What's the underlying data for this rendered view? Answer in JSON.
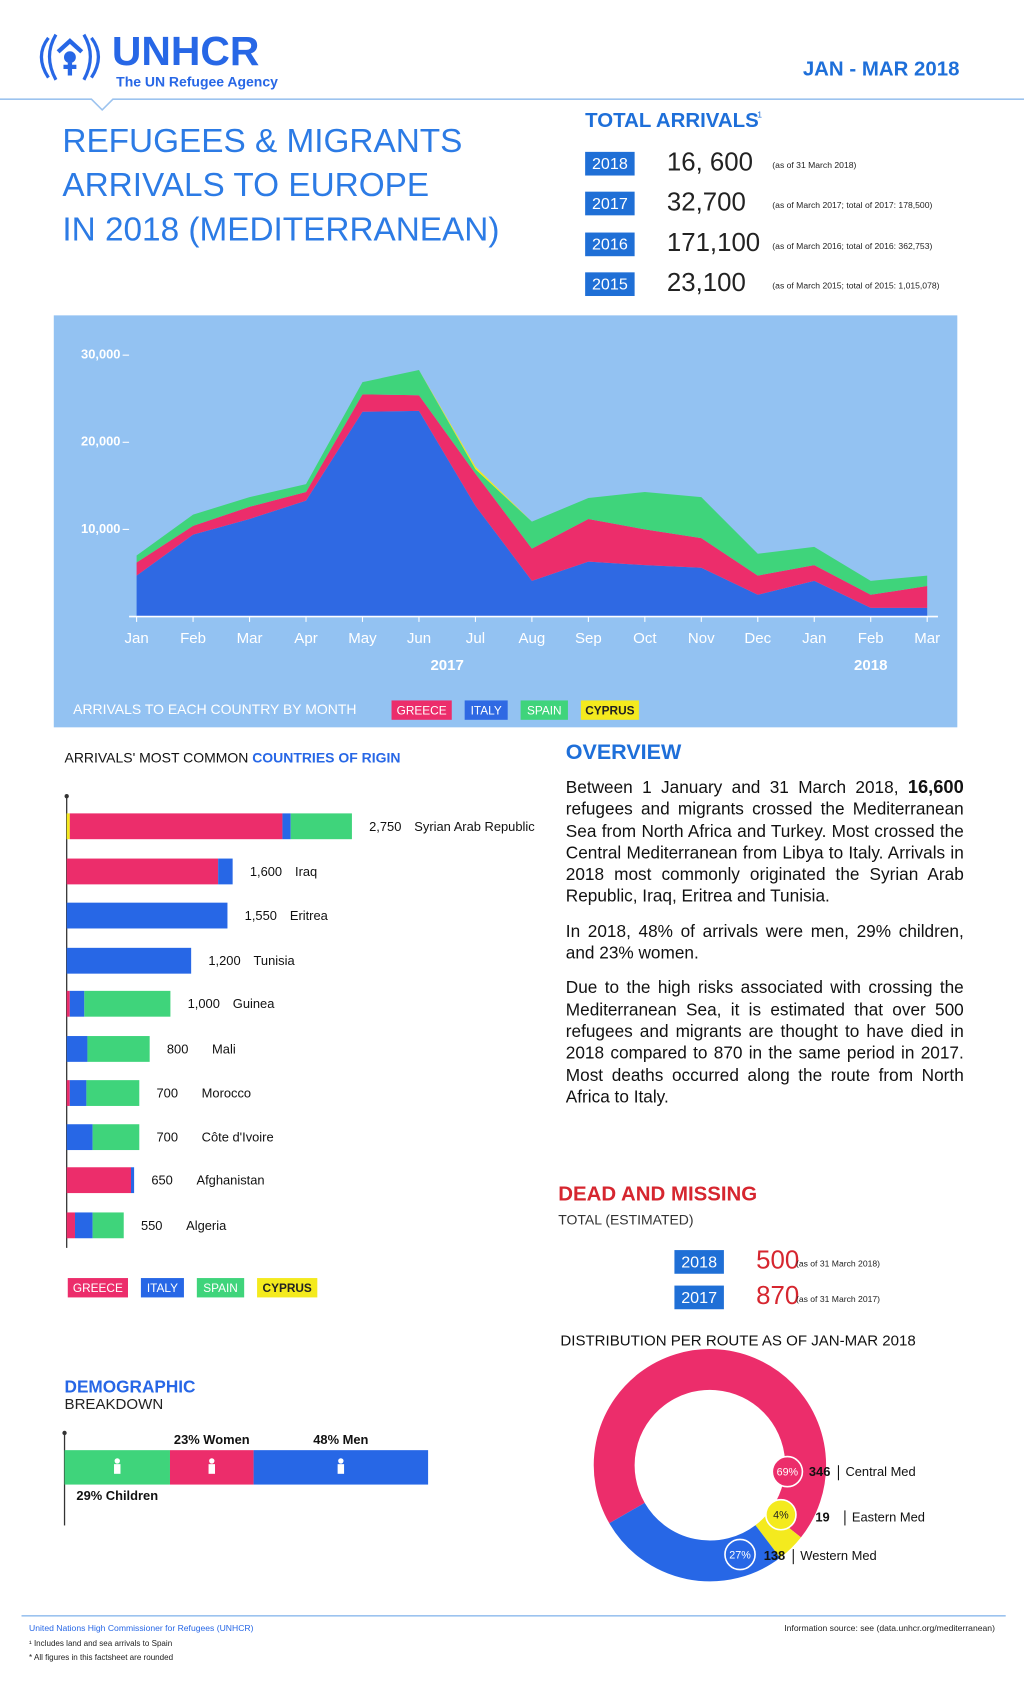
{
  "header": {
    "logo": "UNHCR",
    "tagline": "The UN Refugee Agency",
    "period": "JAN  - MAR 2018",
    "title": [
      "REFUGEES & MIGRANTS",
      "ARRIVALS TO EUROPE",
      "IN 2018 (MEDITERRANEAN)"
    ]
  },
  "total_arrivals": {
    "title": "TOTAL ARRIVALS",
    "footnote": "1",
    "rows": [
      {
        "year": "2018",
        "value": "16, 600",
        "note": "(as of 31 March 2018)"
      },
      {
        "year": "2017",
        "value": "32,700",
        "note": "(as of March 2017; total of 2017: 178,500)"
      },
      {
        "year": "2016",
        "value": "171,100",
        "note": "(as of March 2016; total of 2016: 362,753)"
      },
      {
        "year": "2015",
        "value": "23,100",
        "note": "(as of March 2015; total of 2015: 1,015,078)"
      }
    ]
  },
  "monthly_chart": {
    "type": "area",
    "stacked": true,
    "legend_title": "ARRIVALS TO EACH COUNTRY BY MONTH",
    "categories": [
      "Jan",
      "Feb",
      "Mar",
      "Apr",
      "May",
      "Jun",
      "Jul",
      "Aug",
      "Sep",
      "Oct",
      "Nov",
      "Dec",
      "Jan",
      "Feb",
      "Mar"
    ],
    "year_labels": [
      "2017",
      "2018"
    ],
    "series": [
      {
        "name": "GREECE",
        "color": "#ec2d6b",
        "values": [
          1500,
          1000,
          1400,
          1000,
          2000,
          1800,
          3700,
          3700,
          4900,
          4100,
          3400,
          2200,
          1800,
          1500,
          2500
        ]
      },
      {
        "name": "ITALY",
        "color": "#2f69e3",
        "values": [
          4700,
          9400,
          11200,
          13300,
          23500,
          23600,
          12700,
          4100,
          6300,
          5900,
          5600,
          2500,
          4100,
          1000,
          1000
        ]
      },
      {
        "name": "SPAIN",
        "color": "#3fd47b",
        "values": [
          800,
          1300,
          1100,
          900,
          1400,
          2900,
          500,
          3100,
          2400,
          4300,
          4700,
          2500,
          2100,
          1600,
          1200
        ]
      },
      {
        "name": "CYPRUS",
        "color": "#f4ea1e",
        "values": [
          0,
          0,
          0,
          0,
          0,
          0,
          300,
          0,
          0,
          0,
          0,
          0,
          0,
          0,
          0
        ]
      }
    ],
    "ylim": [
      0,
      30000
    ],
    "yticks": [
      {
        "value": 10000,
        "label": "10,000"
      },
      {
        "value": 20000,
        "label": "20,000"
      },
      {
        "value": 30000,
        "label": "30,000"
      }
    ]
  },
  "origin_chart": {
    "type": "bar",
    "orientation": "horizontal",
    "stacked": true,
    "title_parts": [
      "ARRIVALS' MOST COMMON ",
      "COUNTRIES OF RIGIN"
    ],
    "categories": [
      "Syrian Arab Republic",
      "Iraq",
      "Eritrea",
      "Tunisia",
      "Guinea",
      "Mali",
      "Morocco",
      "Côte d'Ivoire",
      "Afghanistan",
      "Algeria"
    ],
    "total_labels": [
      "2,750",
      "1,600",
      "1,550",
      "1,200",
      "1,000",
      "800",
      "700",
      "700",
      "650",
      "550"
    ],
    "series": [
      {
        "name": "GREECE",
        "color": "#ec2d6b",
        "values": [
          2050,
          1460,
          0,
          0,
          30,
          0,
          30,
          0,
          620,
          80
        ]
      },
      {
        "name": "ITALY",
        "color": "#2767e6",
        "values": [
          80,
          140,
          1550,
          1200,
          140,
          200,
          160,
          250,
          30,
          170
        ]
      },
      {
        "name": "SPAIN",
        "color": "#3fd47b",
        "values": [
          590,
          0,
          0,
          0,
          830,
          600,
          510,
          450,
          0,
          300
        ]
      },
      {
        "name": "CYPRUS",
        "color": "#f4ea1e",
        "values": [
          30,
          0,
          0,
          0,
          0,
          0,
          0,
          0,
          0,
          0
        ]
      }
    ],
    "xlim": [
      0,
      2800
    ]
  },
  "overview": {
    "title": "OVERVIEW",
    "paragraphs": [
      [
        "Between 1 January and 31 March 2018, ",
        "16,600",
        " refugees and migrants crossed the Mediterranean Sea from North Africa and Turkey. Most crossed the Central Mediterranean from Libya to Italy. Arrivals in 2018 most commonly originated the Syrian Arab Republic, Iraq, Eritrea and Tunisia."
      ],
      [
        "In 2018, 48% of arrivals were men, 29% children, and 23% women."
      ],
      [
        "Due to the high risks associated with crossing the Mediterranean Sea, it is estimated that over 500 refugees and migrants are thought to have died in 2018 compared to 870 in  the same period in 2017. Most deaths occurred along the route from North Africa to Italy."
      ]
    ]
  },
  "dead_missing": {
    "title": "DEAD AND MISSING",
    "subtitle": "TOTAL (ESTIMATED)",
    "rows": [
      {
        "year": "2018",
        "value": "500",
        "note": "(as of 31 March 2018)"
      },
      {
        "year": "2017",
        "value": "870",
        "note": "(as of 31 March 2017)"
      }
    ]
  },
  "route_chart": {
    "type": "pie",
    "donut": true,
    "title": "DISTRIBUTION PER ROUTE AS OF  JAN-MAR 2018",
    "categories": [
      "Central Med",
      "Eastern Med",
      "Western Med"
    ],
    "values": [
      69,
      4,
      27
    ],
    "value_labels": [
      "69%",
      "4%",
      "27%"
    ],
    "counts": [
      "346",
      "19",
      "138"
    ],
    "colors": [
      "#ec2d6b",
      "#f4ea1e",
      "#2767e6"
    ]
  },
  "demographic": {
    "type": "bar",
    "title": [
      "DEMOGRAPHIC",
      "BREAKDOWN"
    ],
    "categories": [
      "Children",
      "Women",
      "Men"
    ],
    "values": [
      29,
      23,
      48
    ],
    "value_labels": [
      "29% Children",
      "23% Women",
      "48% Men"
    ],
    "colors": [
      "#3fd47b",
      "#ec2d6b",
      "#2767e6"
    ],
    "xlim": [
      0,
      100
    ]
  },
  "footer": {
    "org": "United Nations High Commissioner for Refugees (UNHCR)",
    "notes": [
      "¹ Includes land and sea arrivals to Spain",
      "* All figures in this factsheet are rounded"
    ],
    "source": "Information source: see (data.unhcr.org/mediterranean)"
  }
}
